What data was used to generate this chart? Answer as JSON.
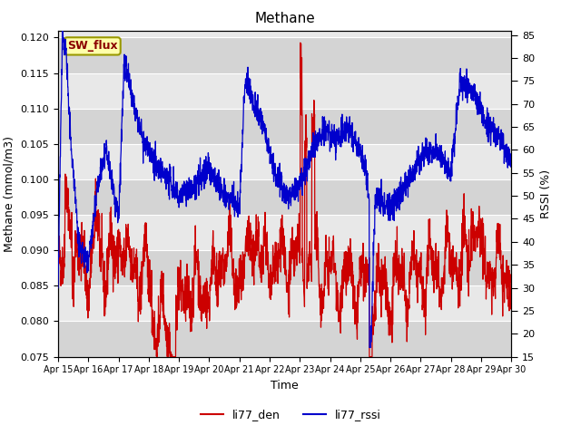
{
  "title": "Methane",
  "xlabel": "Time",
  "ylabel_left": "Methane (mmol/m3)",
  "ylabel_right": "RSSI (%)",
  "ylim_left": [
    0.075,
    0.121
  ],
  "ylim_right": [
    15,
    86
  ],
  "yticks_left": [
    0.075,
    0.08,
    0.085,
    0.09,
    0.095,
    0.1,
    0.105,
    0.11,
    0.115,
    0.12
  ],
  "yticks_right": [
    15,
    20,
    25,
    30,
    35,
    40,
    45,
    50,
    55,
    60,
    65,
    70,
    75,
    80,
    85
  ],
  "xtick_labels": [
    "Apr 15",
    "Apr 16",
    "Apr 17",
    "Apr 18",
    "Apr 19",
    "Apr 20",
    "Apr 21",
    "Apr 22",
    "Apr 23",
    "Apr 24",
    "Apr 25",
    "Apr 26",
    "Apr 27",
    "Apr 28",
    "Apr 29",
    "Apr 30"
  ],
  "color_den": "#cc0000",
  "color_rssi": "#0000cc",
  "legend_label_den": "li77_den",
  "legend_label_rssi": "li77_rssi",
  "annotation_text": "SW_flux",
  "annotation_color_text": "#8b0000",
  "annotation_bg": "#ffffaa",
  "annotation_border": "#999900",
  "bg_light": "#e8e8e8",
  "bg_dark": "#d4d4d4",
  "grid_color": "#ffffff"
}
